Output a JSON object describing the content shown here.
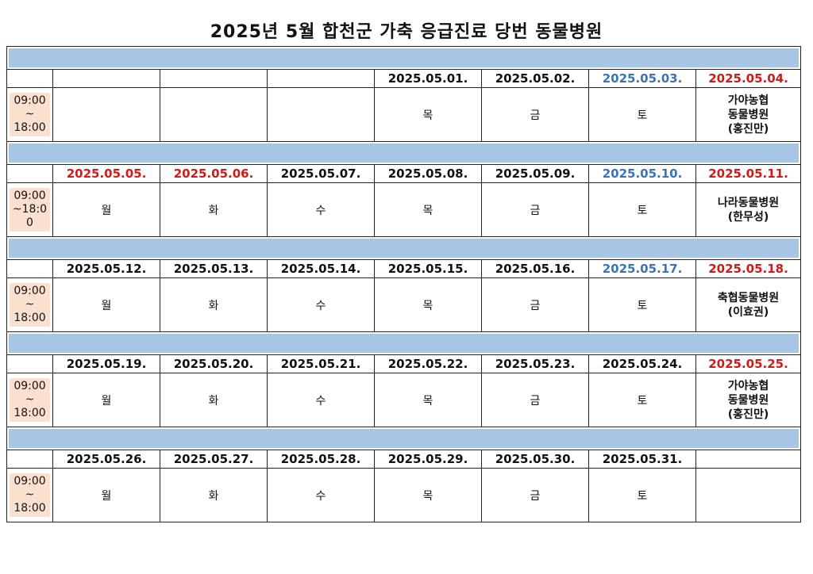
{
  "title": "2025년 5월 합천군 가축 응급진료 당번 동물병원",
  "colors": {
    "band": "#a7c6e6",
    "time_bg": "#fbe0cf",
    "red": "#d11a1a",
    "blue": "#3a73b8"
  },
  "weeks": [
    {
      "dates": [
        {
          "text": "",
          "color": "black"
        },
        {
          "text": "",
          "color": "black"
        },
        {
          "text": "",
          "color": "black"
        },
        {
          "text": "2025.05.01.",
          "color": "black"
        },
        {
          "text": "2025.05.02.",
          "color": "black"
        },
        {
          "text": "2025.05.03.",
          "color": "blue"
        },
        {
          "text": "2025.05.04.",
          "color": "red"
        }
      ],
      "time": [
        "09:00",
        "~",
        "18:00"
      ],
      "days": [
        "",
        "",
        "",
        "목",
        "금",
        "토"
      ],
      "hospital": [
        "가야농협",
        "동물병원",
        "(홍진만)"
      ]
    },
    {
      "dates": [
        {
          "text": "2025.05.05.",
          "color": "red"
        },
        {
          "text": "2025.05.06.",
          "color": "red"
        },
        {
          "text": "2025.05.07.",
          "color": "black"
        },
        {
          "text": "2025.05.08.",
          "color": "black"
        },
        {
          "text": "2025.05.09.",
          "color": "black"
        },
        {
          "text": "2025.05.10.",
          "color": "blue"
        },
        {
          "text": "2025.05.11.",
          "color": "red"
        }
      ],
      "time": [
        "09:00",
        "~18:0",
        "0"
      ],
      "days": [
        "월",
        "화",
        "수",
        "목",
        "금",
        "토"
      ],
      "hospital": [
        "나라동물병원",
        "(한무성)"
      ]
    },
    {
      "dates": [
        {
          "text": "2025.05.12.",
          "color": "black"
        },
        {
          "text": "2025.05.13.",
          "color": "black"
        },
        {
          "text": "2025.05.14.",
          "color": "black"
        },
        {
          "text": "2025.05.15.",
          "color": "black"
        },
        {
          "text": "2025.05.16.",
          "color": "black"
        },
        {
          "text": "2025.05.17.",
          "color": "blue"
        },
        {
          "text": "2025.05.18.",
          "color": "red"
        }
      ],
      "time": [
        "09:00",
        "~",
        "18:00"
      ],
      "days": [
        "월",
        "화",
        "수",
        "목",
        "금",
        "토"
      ],
      "hospital": [
        "축협동물병원",
        "(이효권)"
      ]
    },
    {
      "dates": [
        {
          "text": "2025.05.19.",
          "color": "black"
        },
        {
          "text": "2025.05.20.",
          "color": "black"
        },
        {
          "text": "2025.05.21.",
          "color": "black"
        },
        {
          "text": "2025.05.22.",
          "color": "black"
        },
        {
          "text": "2025.05.23.",
          "color": "black"
        },
        {
          "text": "2025.05.24.",
          "color": "black"
        },
        {
          "text": "2025.05.25.",
          "color": "red"
        }
      ],
      "time": [
        "09:00",
        "~",
        "18:00"
      ],
      "days": [
        "월",
        "화",
        "수",
        "목",
        "금",
        "토"
      ],
      "hospital": [
        "가야농협",
        "동물병원",
        "(홍진만)"
      ]
    },
    {
      "dates": [
        {
          "text": "2025.05.26.",
          "color": "black"
        },
        {
          "text": "2025.05.27.",
          "color": "black"
        },
        {
          "text": "2025.05.28.",
          "color": "black"
        },
        {
          "text": "2025.05.29.",
          "color": "black"
        },
        {
          "text": "2025.05.30.",
          "color": "black"
        },
        {
          "text": "2025.05.31.",
          "color": "black"
        },
        {
          "text": "",
          "color": "black"
        }
      ],
      "time": [
        "09:00",
        "~",
        "18:00"
      ],
      "days": [
        "월",
        "화",
        "수",
        "목",
        "금",
        "토"
      ],
      "hospital": []
    }
  ]
}
